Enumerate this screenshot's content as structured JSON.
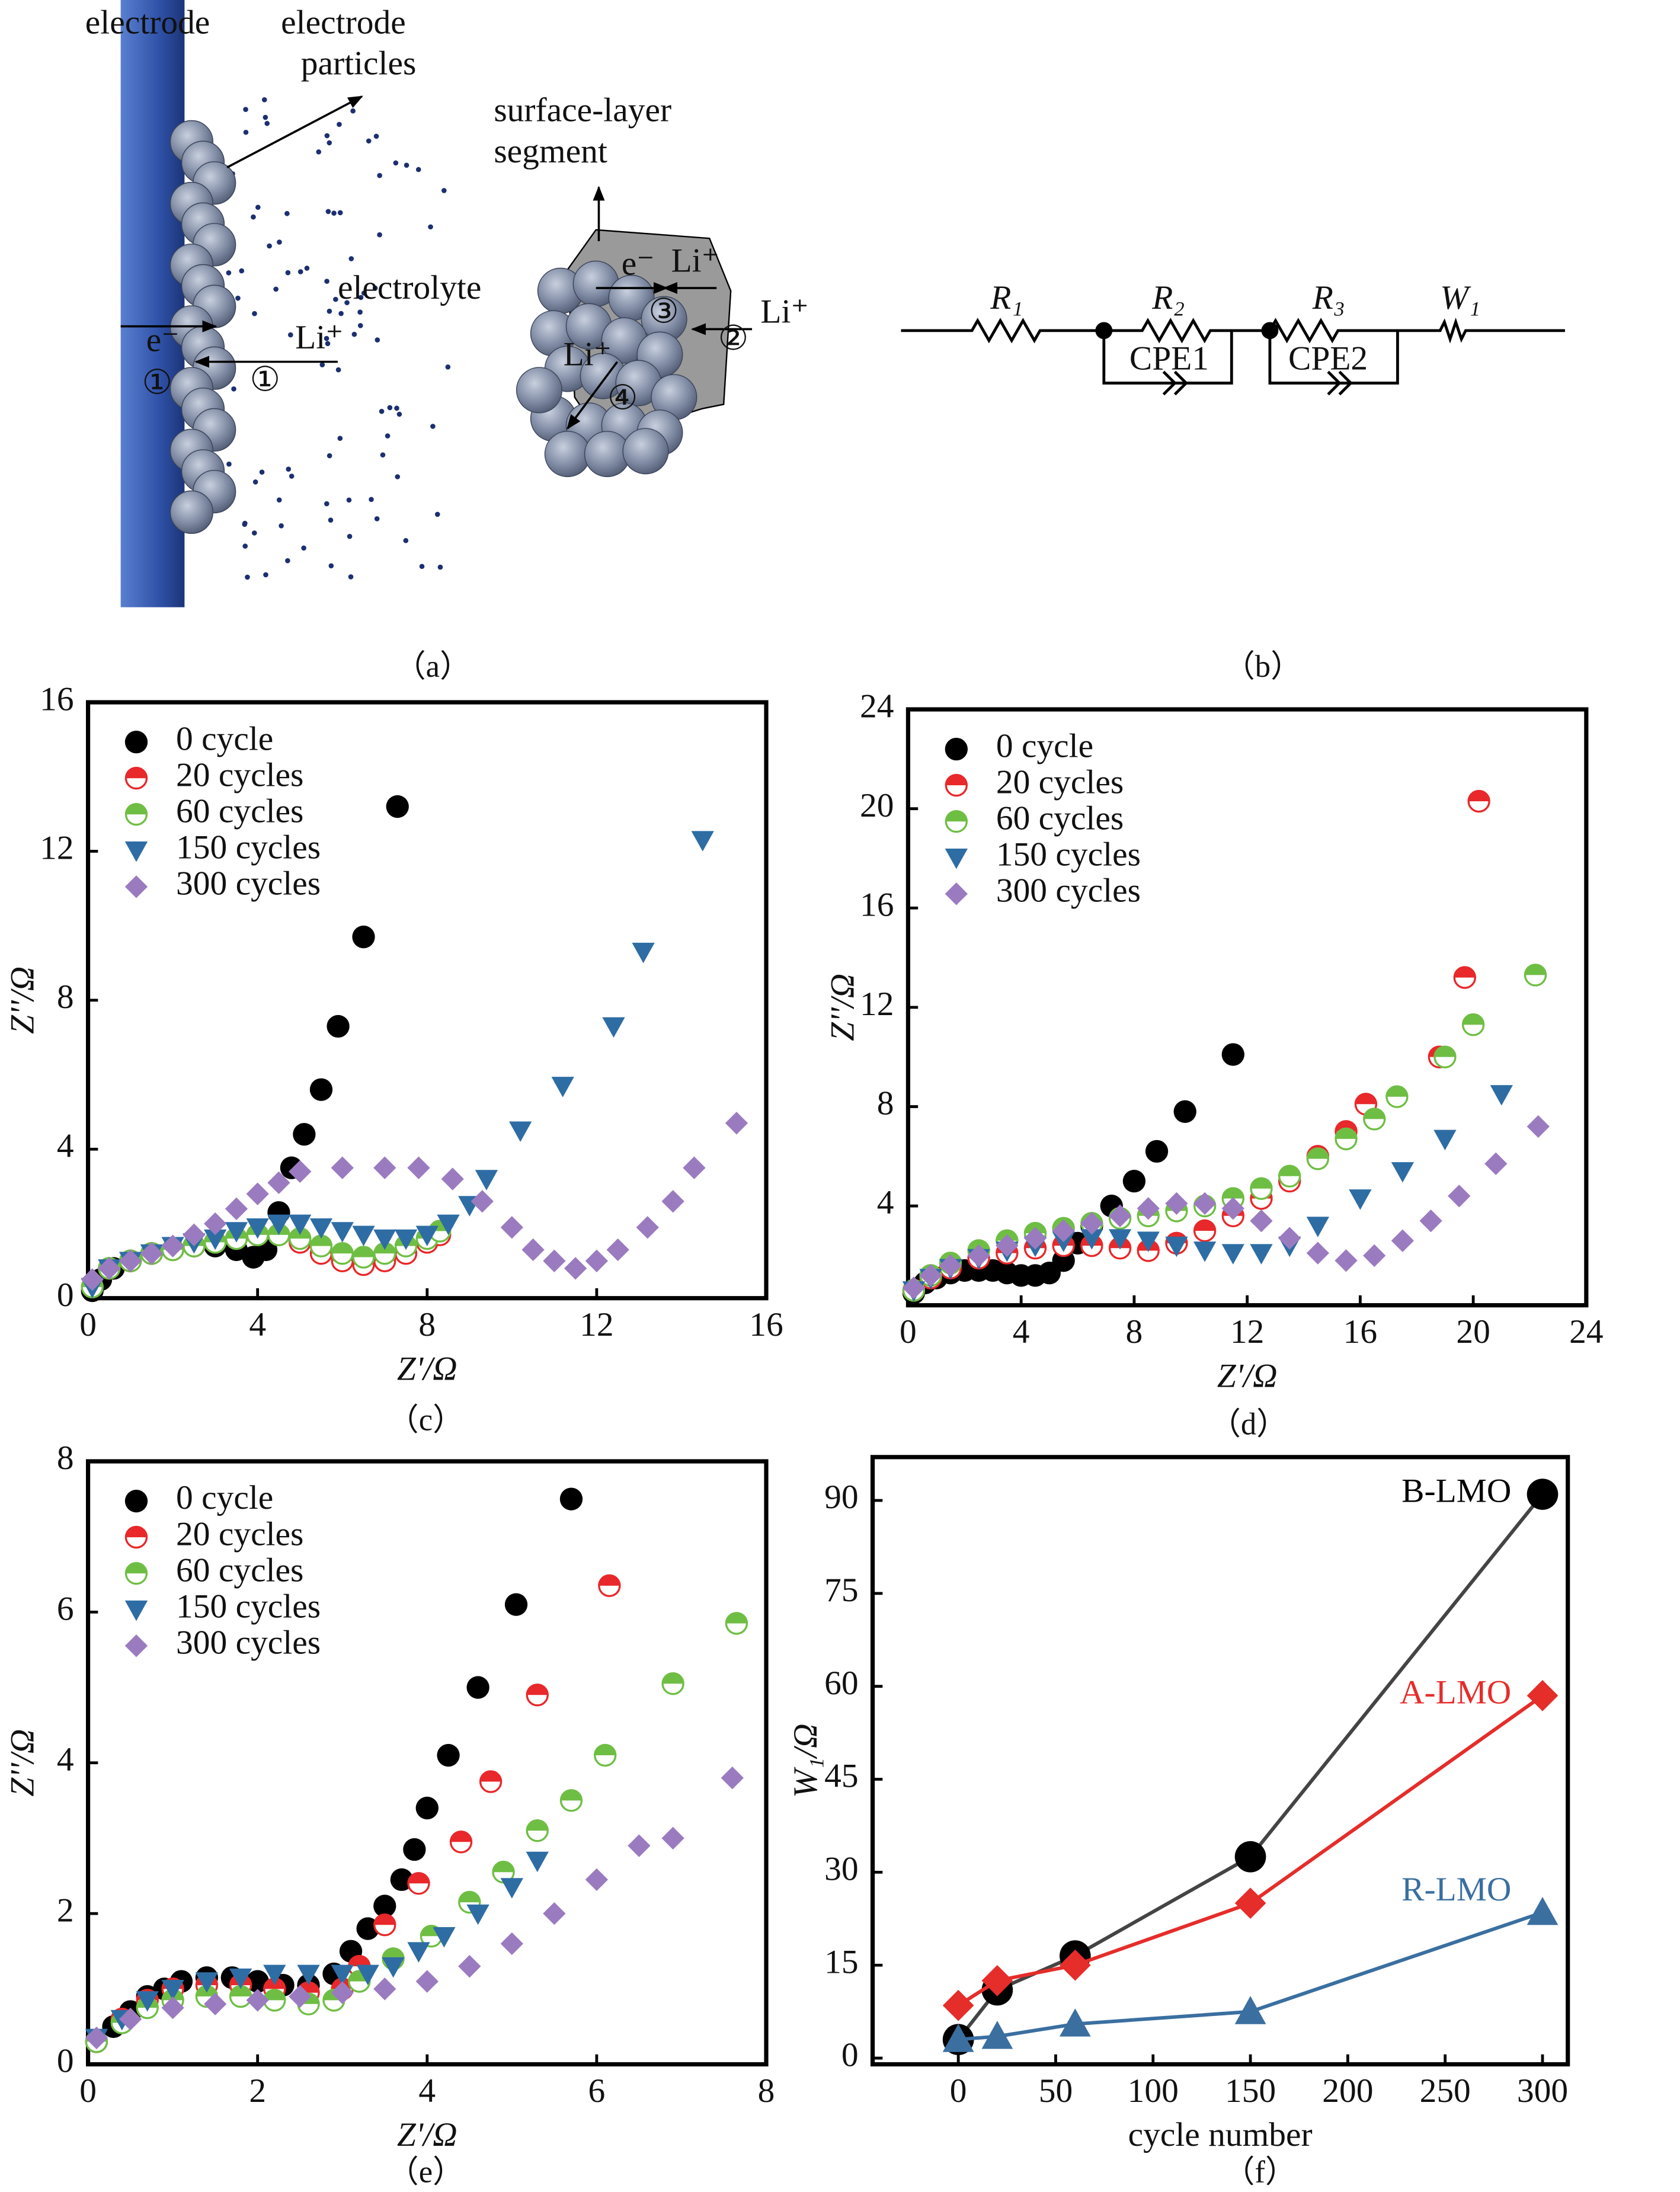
{
  "diagram_a": {
    "texts": [
      "electrode",
      "electrode",
      "particles",
      "surface-layer",
      "segment",
      "electrolyte",
      "e⁻",
      "①",
      "Li⁺",
      "①",
      "e⁻",
      "Li⁺",
      "③",
      "②",
      "Li⁺",
      "Li⁺",
      "④"
    ]
  },
  "diagram_b": {
    "texts": [
      "R₁",
      "R₂",
      "CPE1",
      "R₃",
      "CPE2",
      "W₁"
    ]
  },
  "captions": [
    "（a）",
    "（b）",
    "（c）",
    "（d）",
    "（e）",
    "（f）"
  ],
  "chart_data": [
    {
      "type": "scatter",
      "xlabel": "Z'/Ω",
      "ylabel": "Z''/Ω",
      "xlim": [
        0,
        16
      ],
      "ylim": [
        0,
        16
      ],
      "xticks": [
        0,
        4,
        8,
        12,
        16
      ],
      "yticks": [
        0,
        4,
        8,
        12,
        16
      ],
      "legend": "upper left",
      "series": [
        {
          "name": "0 cycle",
          "color": "#000000",
          "marker": "circle",
          "x": [
            0.1,
            0.3,
            0.6,
            1.0,
            1.5,
            2.0,
            2.5,
            3.0,
            3.5,
            3.9,
            4.2,
            4.5,
            4.8,
            5.1,
            5.5,
            5.9,
            6.5,
            7.3
          ],
          "values": [
            0.2,
            0.5,
            0.8,
            1.0,
            1.2,
            1.3,
            1.4,
            1.4,
            1.3,
            1.1,
            1.3,
            2.3,
            3.5,
            4.4,
            5.6,
            7.3,
            9.7,
            13.2
          ]
        },
        {
          "name": "20 cycles",
          "color": "#e8282a",
          "marker": "half-circle",
          "x": [
            0.1,
            0.5,
            1,
            1.5,
            2,
            2.5,
            3,
            3.5,
            4,
            4.5,
            5,
            5.5,
            6,
            6.5,
            7,
            7.5,
            8,
            8.3
          ],
          "values": [
            0.3,
            0.8,
            1.0,
            1.2,
            1.3,
            1.4,
            1.5,
            1.6,
            1.7,
            1.7,
            1.5,
            1.2,
            1.0,
            0.9,
            1.0,
            1.2,
            1.5,
            1.7
          ]
        },
        {
          "name": "60 cycles",
          "color": "#6fbe44",
          "marker": "half-circle",
          "x": [
            0.1,
            0.5,
            1,
            1.5,
            2,
            2.5,
            3,
            3.5,
            4,
            4.5,
            5,
            5.5,
            6,
            6.5,
            7,
            7.5,
            8,
            8.3
          ],
          "values": [
            0.3,
            0.8,
            1.0,
            1.2,
            1.3,
            1.4,
            1.5,
            1.6,
            1.7,
            1.7,
            1.6,
            1.4,
            1.2,
            1.1,
            1.2,
            1.4,
            1.6,
            1.8
          ]
        },
        {
          "name": "150 cycles",
          "color": "#2e6da4",
          "marker": "triangle-down",
          "x": [
            0.1,
            0.5,
            1,
            1.5,
            2,
            2.5,
            3,
            3.5,
            4,
            4.5,
            5,
            5.5,
            6,
            6.5,
            7,
            7.5,
            8,
            8.5,
            9,
            9.4,
            10.2,
            11.2,
            12.4,
            13.1,
            14.5
          ],
          "values": [
            0.3,
            0.8,
            1.0,
            1.2,
            1.4,
            1.5,
            1.6,
            1.8,
            1.9,
            2.0,
            2.0,
            1.9,
            1.8,
            1.7,
            1.6,
            1.6,
            1.7,
            2.0,
            2.5,
            3.2,
            4.5,
            5.7,
            7.3,
            9.3,
            12.3
          ]
        },
        {
          "name": "300 cycles",
          "color": "#9b7bc0",
          "marker": "diamond",
          "x": [
            0.1,
            0.5,
            1,
            1.5,
            2,
            2.5,
            3,
            3.5,
            4,
            4.5,
            5,
            6,
            7,
            7.8,
            8.6,
            9.3,
            10,
            10.5,
            11,
            11.5,
            12,
            12.5,
            13.2,
            13.8,
            14.3,
            15.3
          ],
          "values": [
            0.5,
            0.8,
            1.0,
            1.2,
            1.4,
            1.7,
            2.0,
            2.4,
            2.8,
            3.1,
            3.4,
            3.5,
            3.5,
            3.5,
            3.2,
            2.6,
            1.9,
            1.3,
            1.0,
            0.8,
            1.0,
            1.3,
            1.9,
            2.6,
            3.5,
            4.7
          ]
        }
      ]
    },
    {
      "type": "scatter",
      "xlabel": "Z'/Ω",
      "ylabel": "Z''/Ω",
      "xlim": [
        0,
        24
      ],
      "ylim": [
        0,
        24
      ],
      "xticks": [
        0,
        4,
        8,
        12,
        16,
        20,
        24
      ],
      "yticks": [
        4,
        8,
        12,
        16,
        20,
        24
      ],
      "legend": "upper left",
      "series": [
        {
          "name": "0 cycle",
          "color": "#000000",
          "marker": "circle",
          "x": [
            0.2,
            0.6,
            1,
            1.5,
            2,
            2.5,
            3,
            3.5,
            4,
            4.5,
            5,
            5.5,
            6,
            6.5,
            7.2,
            8,
            8.8,
            9.8,
            11.5
          ],
          "values": [
            0.5,
            0.9,
            1.1,
            1.3,
            1.4,
            1.4,
            1.4,
            1.3,
            1.2,
            1.2,
            1.3,
            1.8,
            2.5,
            3.2,
            4.0,
            5.0,
            6.2,
            7.8,
            10.1
          ]
        },
        {
          "name": "20 cycles",
          "color": "#e8282a",
          "marker": "half-circle",
          "x": [
            0.2,
            0.8,
            1.5,
            2.5,
            3.5,
            4.5,
            5.5,
            6.5,
            7.5,
            8.5,
            9.5,
            10.5,
            11.5,
            12.5,
            13.5,
            14.5,
            15.5,
            16.2,
            18.8,
            19.7,
            20.2
          ],
          "values": [
            0.6,
            1.1,
            1.5,
            1.9,
            2.1,
            2.3,
            2.4,
            2.4,
            2.3,
            2.2,
            2.5,
            3.0,
            3.6,
            4.3,
            5.0,
            6.0,
            7.0,
            8.1,
            10.0,
            13.2,
            20.3
          ]
        },
        {
          "name": "60 cycles",
          "color": "#6fbe44",
          "marker": "half-circle",
          "x": [
            0.2,
            0.8,
            1.5,
            2.5,
            3.5,
            4.5,
            5.5,
            6.5,
            7.5,
            8.5,
            9.5,
            10.5,
            11.5,
            12.5,
            13.5,
            14.5,
            15.5,
            16.5,
            17.3,
            19,
            20,
            22.2
          ],
          "values": [
            0.6,
            1.2,
            1.7,
            2.2,
            2.6,
            2.9,
            3.1,
            3.3,
            3.5,
            3.6,
            3.8,
            4.0,
            4.3,
            4.7,
            5.2,
            5.9,
            6.7,
            7.5,
            8.4,
            10,
            11.3,
            13.3
          ]
        },
        {
          "name": "150 cycles",
          "color": "#2e6da4",
          "marker": "triangle-down",
          "x": [
            0.2,
            0.8,
            1.5,
            2.5,
            3.5,
            4.5,
            5.5,
            6.5,
            7.5,
            8.5,
            9.5,
            10.5,
            11.5,
            12.5,
            13.5,
            14.5,
            16,
            17.5,
            19,
            21
          ],
          "values": [
            0.6,
            1.1,
            1.5,
            1.9,
            2.2,
            2.4,
            2.6,
            2.7,
            2.7,
            2.6,
            2.4,
            2.2,
            2.1,
            2.1,
            2.4,
            3.2,
            4.3,
            5.4,
            6.7,
            8.5
          ]
        },
        {
          "name": "300 cycles",
          "color": "#9b7bc0",
          "marker": "diamond",
          "x": [
            0.2,
            0.8,
            1.5,
            2.5,
            3.5,
            4.5,
            5.5,
            6.5,
            7.5,
            8.5,
            9.5,
            10.5,
            11.5,
            12.5,
            13.5,
            14.5,
            15.5,
            16.5,
            17.5,
            18.5,
            19.5,
            20.8,
            22.3
          ],
          "values": [
            0.7,
            1.2,
            1.6,
            2.0,
            2.4,
            2.7,
            3.0,
            3.3,
            3.6,
            3.9,
            4.1,
            4.1,
            3.9,
            3.4,
            2.7,
            2.1,
            1.8,
            2.0,
            2.6,
            3.4,
            4.4,
            5.7,
            7.2
          ]
        }
      ]
    },
    {
      "type": "scatter",
      "xlabel": "Z'/Ω",
      "ylabel": "Z''/Ω",
      "xlim": [
        0,
        8
      ],
      "ylim": [
        0,
        8
      ],
      "xticks": [
        0,
        2,
        4,
        6,
        8
      ],
      "yticks": [
        0,
        2,
        4,
        6,
        8
      ],
      "legend": "upper left",
      "series": [
        {
          "name": "0 cycle",
          "color": "#000000",
          "marker": "circle",
          "x": [
            0.1,
            0.3,
            0.5,
            0.7,
            0.9,
            1.1,
            1.4,
            1.7,
            2,
            2.3,
            2.6,
            2.9,
            3.1,
            3.3,
            3.5,
            3.7,
            3.85,
            4.0,
            4.25,
            4.6,
            5.05,
            5.7
          ],
          "values": [
            0.3,
            0.5,
            0.7,
            0.9,
            1.0,
            1.1,
            1.15,
            1.15,
            1.1,
            1.05,
            1.05,
            1.2,
            1.5,
            1.8,
            2.1,
            2.45,
            2.85,
            3.4,
            4.1,
            5.0,
            6.1,
            7.5
          ]
        },
        {
          "name": "20 cycles",
          "color": "#e8282a",
          "marker": "half-circle",
          "x": [
            0.1,
            0.4,
            0.7,
            1,
            1.4,
            1.8,
            2.2,
            2.6,
            3,
            3.2,
            3.5,
            3.9,
            4.4,
            4.75,
            5.3,
            6.15
          ],
          "values": [
            0.3,
            0.6,
            0.85,
            1.0,
            1.05,
            1.05,
            1.0,
            0.95,
            1.0,
            1.3,
            1.85,
            2.4,
            2.95,
            3.75,
            4.9,
            6.35
          ]
        },
        {
          "name": "60 cycles",
          "color": "#6fbe44",
          "marker": "half-circle",
          "x": [
            0.1,
            0.4,
            0.7,
            1,
            1.4,
            1.8,
            2.2,
            2.6,
            2.9,
            3.2,
            3.6,
            4.05,
            4.5,
            4.9,
            5.3,
            5.7,
            6.1,
            6.9,
            7.65
          ],
          "values": [
            0.3,
            0.55,
            0.75,
            0.85,
            0.9,
            0.9,
            0.85,
            0.8,
            0.85,
            1.1,
            1.4,
            1.7,
            2.15,
            2.55,
            3.1,
            3.5,
            4.1,
            5.05,
            5.85
          ]
        },
        {
          "name": "150 cycles",
          "color": "#2e6da4",
          "marker": "triangle-down",
          "x": [
            0.1,
            0.4,
            0.7,
            1,
            1.4,
            1.8,
            2.2,
            2.6,
            3,
            3.3,
            3.6,
            3.9,
            4.2,
            4.6,
            5.0,
            5.3
          ],
          "values": [
            0.35,
            0.6,
            0.85,
            1.0,
            1.1,
            1.15,
            1.2,
            1.2,
            1.2,
            1.2,
            1.3,
            1.5,
            1.7,
            2.0,
            2.35,
            2.7
          ]
        },
        {
          "name": "300 cycles",
          "color": "#9b7bc0",
          "marker": "diamond",
          "x": [
            0.1,
            0.5,
            1,
            1.5,
            2,
            2.5,
            3,
            3.5,
            4,
            4.5,
            5,
            5.5,
            6,
            6.5,
            6.9,
            7.6
          ],
          "values": [
            0.35,
            0.6,
            0.75,
            0.8,
            0.85,
            0.9,
            0.95,
            1.0,
            1.1,
            1.3,
            1.6,
            2.0,
            2.45,
            2.9,
            3.0,
            3.8
          ]
        }
      ]
    },
    {
      "type": "line",
      "xlabel": "cycle number",
      "ylabel": "W₁/Ω",
      "xlim": [
        -44,
        313
      ],
      "ylim": [
        -1,
        97
      ],
      "xticks": [
        0,
        50,
        100,
        150,
        200,
        250,
        300
      ],
      "yticks": [
        0,
        15,
        30,
        45,
        60,
        75,
        90
      ],
      "series": [
        {
          "name": "B-LMO",
          "color": "#000000",
          "line_color": "#444444",
          "marker": "circle",
          "x": [
            0,
            20,
            60,
            150,
            300
          ],
          "values": [
            3,
            11,
            16.5,
            32.5,
            91
          ]
        },
        {
          "name": "A-LMO",
          "color": "#e52d2a",
          "line_color": "#e52d2a",
          "marker": "diamond",
          "x": [
            0,
            20,
            60,
            150,
            300
          ],
          "values": [
            8.5,
            12.5,
            15,
            25,
            58.5
          ]
        },
        {
          "name": "R-LMO",
          "color": "#3a6fa0",
          "line_color": "#3a6fa0",
          "marker": "triangle-up",
          "x": [
            0,
            20,
            60,
            150,
            300
          ],
          "values": [
            3,
            3.5,
            5.5,
            7.5,
            23.5
          ]
        }
      ]
    }
  ]
}
